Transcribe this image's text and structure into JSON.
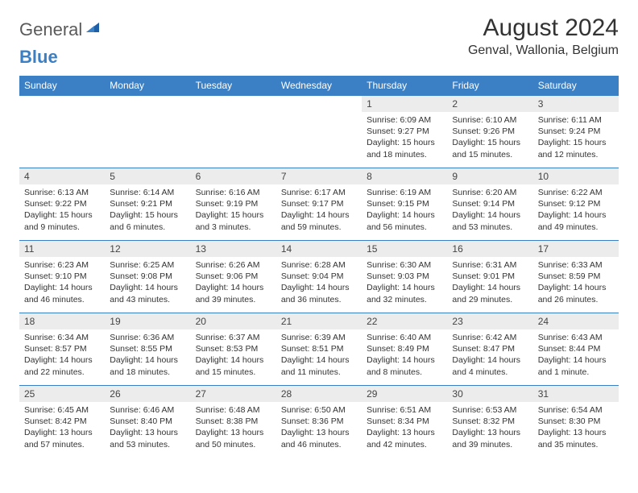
{
  "logo": {
    "part1": "General",
    "part2": "Blue"
  },
  "title": "August 2024",
  "location": "Genval, Wallonia, Belgium",
  "headers": [
    "Sunday",
    "Monday",
    "Tuesday",
    "Wednesday",
    "Thursday",
    "Friday",
    "Saturday"
  ],
  "colors": {
    "header_bg": "#3b7fc4",
    "header_text": "#ffffff",
    "daynum_bg": "#ececec",
    "border": "#3b7fc4",
    "body_text": "#333333",
    "logo_gray": "#5a5a5a",
    "logo_blue": "#3b7fc4"
  },
  "weeks": [
    [
      null,
      null,
      null,
      null,
      {
        "n": "1",
        "sr": "Sunrise: 6:09 AM",
        "ss": "Sunset: 9:27 PM",
        "dl1": "Daylight: 15 hours",
        "dl2": "and 18 minutes."
      },
      {
        "n": "2",
        "sr": "Sunrise: 6:10 AM",
        "ss": "Sunset: 9:26 PM",
        "dl1": "Daylight: 15 hours",
        "dl2": "and 15 minutes."
      },
      {
        "n": "3",
        "sr": "Sunrise: 6:11 AM",
        "ss": "Sunset: 9:24 PM",
        "dl1": "Daylight: 15 hours",
        "dl2": "and 12 minutes."
      }
    ],
    [
      {
        "n": "4",
        "sr": "Sunrise: 6:13 AM",
        "ss": "Sunset: 9:22 PM",
        "dl1": "Daylight: 15 hours",
        "dl2": "and 9 minutes."
      },
      {
        "n": "5",
        "sr": "Sunrise: 6:14 AM",
        "ss": "Sunset: 9:21 PM",
        "dl1": "Daylight: 15 hours",
        "dl2": "and 6 minutes."
      },
      {
        "n": "6",
        "sr": "Sunrise: 6:16 AM",
        "ss": "Sunset: 9:19 PM",
        "dl1": "Daylight: 15 hours",
        "dl2": "and 3 minutes."
      },
      {
        "n": "7",
        "sr": "Sunrise: 6:17 AM",
        "ss": "Sunset: 9:17 PM",
        "dl1": "Daylight: 14 hours",
        "dl2": "and 59 minutes."
      },
      {
        "n": "8",
        "sr": "Sunrise: 6:19 AM",
        "ss": "Sunset: 9:15 PM",
        "dl1": "Daylight: 14 hours",
        "dl2": "and 56 minutes."
      },
      {
        "n": "9",
        "sr": "Sunrise: 6:20 AM",
        "ss": "Sunset: 9:14 PM",
        "dl1": "Daylight: 14 hours",
        "dl2": "and 53 minutes."
      },
      {
        "n": "10",
        "sr": "Sunrise: 6:22 AM",
        "ss": "Sunset: 9:12 PM",
        "dl1": "Daylight: 14 hours",
        "dl2": "and 49 minutes."
      }
    ],
    [
      {
        "n": "11",
        "sr": "Sunrise: 6:23 AM",
        "ss": "Sunset: 9:10 PM",
        "dl1": "Daylight: 14 hours",
        "dl2": "and 46 minutes."
      },
      {
        "n": "12",
        "sr": "Sunrise: 6:25 AM",
        "ss": "Sunset: 9:08 PM",
        "dl1": "Daylight: 14 hours",
        "dl2": "and 43 minutes."
      },
      {
        "n": "13",
        "sr": "Sunrise: 6:26 AM",
        "ss": "Sunset: 9:06 PM",
        "dl1": "Daylight: 14 hours",
        "dl2": "and 39 minutes."
      },
      {
        "n": "14",
        "sr": "Sunrise: 6:28 AM",
        "ss": "Sunset: 9:04 PM",
        "dl1": "Daylight: 14 hours",
        "dl2": "and 36 minutes."
      },
      {
        "n": "15",
        "sr": "Sunrise: 6:30 AM",
        "ss": "Sunset: 9:03 PM",
        "dl1": "Daylight: 14 hours",
        "dl2": "and 32 minutes."
      },
      {
        "n": "16",
        "sr": "Sunrise: 6:31 AM",
        "ss": "Sunset: 9:01 PM",
        "dl1": "Daylight: 14 hours",
        "dl2": "and 29 minutes."
      },
      {
        "n": "17",
        "sr": "Sunrise: 6:33 AM",
        "ss": "Sunset: 8:59 PM",
        "dl1": "Daylight: 14 hours",
        "dl2": "and 26 minutes."
      }
    ],
    [
      {
        "n": "18",
        "sr": "Sunrise: 6:34 AM",
        "ss": "Sunset: 8:57 PM",
        "dl1": "Daylight: 14 hours",
        "dl2": "and 22 minutes."
      },
      {
        "n": "19",
        "sr": "Sunrise: 6:36 AM",
        "ss": "Sunset: 8:55 PM",
        "dl1": "Daylight: 14 hours",
        "dl2": "and 18 minutes."
      },
      {
        "n": "20",
        "sr": "Sunrise: 6:37 AM",
        "ss": "Sunset: 8:53 PM",
        "dl1": "Daylight: 14 hours",
        "dl2": "and 15 minutes."
      },
      {
        "n": "21",
        "sr": "Sunrise: 6:39 AM",
        "ss": "Sunset: 8:51 PM",
        "dl1": "Daylight: 14 hours",
        "dl2": "and 11 minutes."
      },
      {
        "n": "22",
        "sr": "Sunrise: 6:40 AM",
        "ss": "Sunset: 8:49 PM",
        "dl1": "Daylight: 14 hours",
        "dl2": "and 8 minutes."
      },
      {
        "n": "23",
        "sr": "Sunrise: 6:42 AM",
        "ss": "Sunset: 8:47 PM",
        "dl1": "Daylight: 14 hours",
        "dl2": "and 4 minutes."
      },
      {
        "n": "24",
        "sr": "Sunrise: 6:43 AM",
        "ss": "Sunset: 8:44 PM",
        "dl1": "Daylight: 14 hours",
        "dl2": "and 1 minute."
      }
    ],
    [
      {
        "n": "25",
        "sr": "Sunrise: 6:45 AM",
        "ss": "Sunset: 8:42 PM",
        "dl1": "Daylight: 13 hours",
        "dl2": "and 57 minutes."
      },
      {
        "n": "26",
        "sr": "Sunrise: 6:46 AM",
        "ss": "Sunset: 8:40 PM",
        "dl1": "Daylight: 13 hours",
        "dl2": "and 53 minutes."
      },
      {
        "n": "27",
        "sr": "Sunrise: 6:48 AM",
        "ss": "Sunset: 8:38 PM",
        "dl1": "Daylight: 13 hours",
        "dl2": "and 50 minutes."
      },
      {
        "n": "28",
        "sr": "Sunrise: 6:50 AM",
        "ss": "Sunset: 8:36 PM",
        "dl1": "Daylight: 13 hours",
        "dl2": "and 46 minutes."
      },
      {
        "n": "29",
        "sr": "Sunrise: 6:51 AM",
        "ss": "Sunset: 8:34 PM",
        "dl1": "Daylight: 13 hours",
        "dl2": "and 42 minutes."
      },
      {
        "n": "30",
        "sr": "Sunrise: 6:53 AM",
        "ss": "Sunset: 8:32 PM",
        "dl1": "Daylight: 13 hours",
        "dl2": "and 39 minutes."
      },
      {
        "n": "31",
        "sr": "Sunrise: 6:54 AM",
        "ss": "Sunset: 8:30 PM",
        "dl1": "Daylight: 13 hours",
        "dl2": "and 35 minutes."
      }
    ]
  ]
}
